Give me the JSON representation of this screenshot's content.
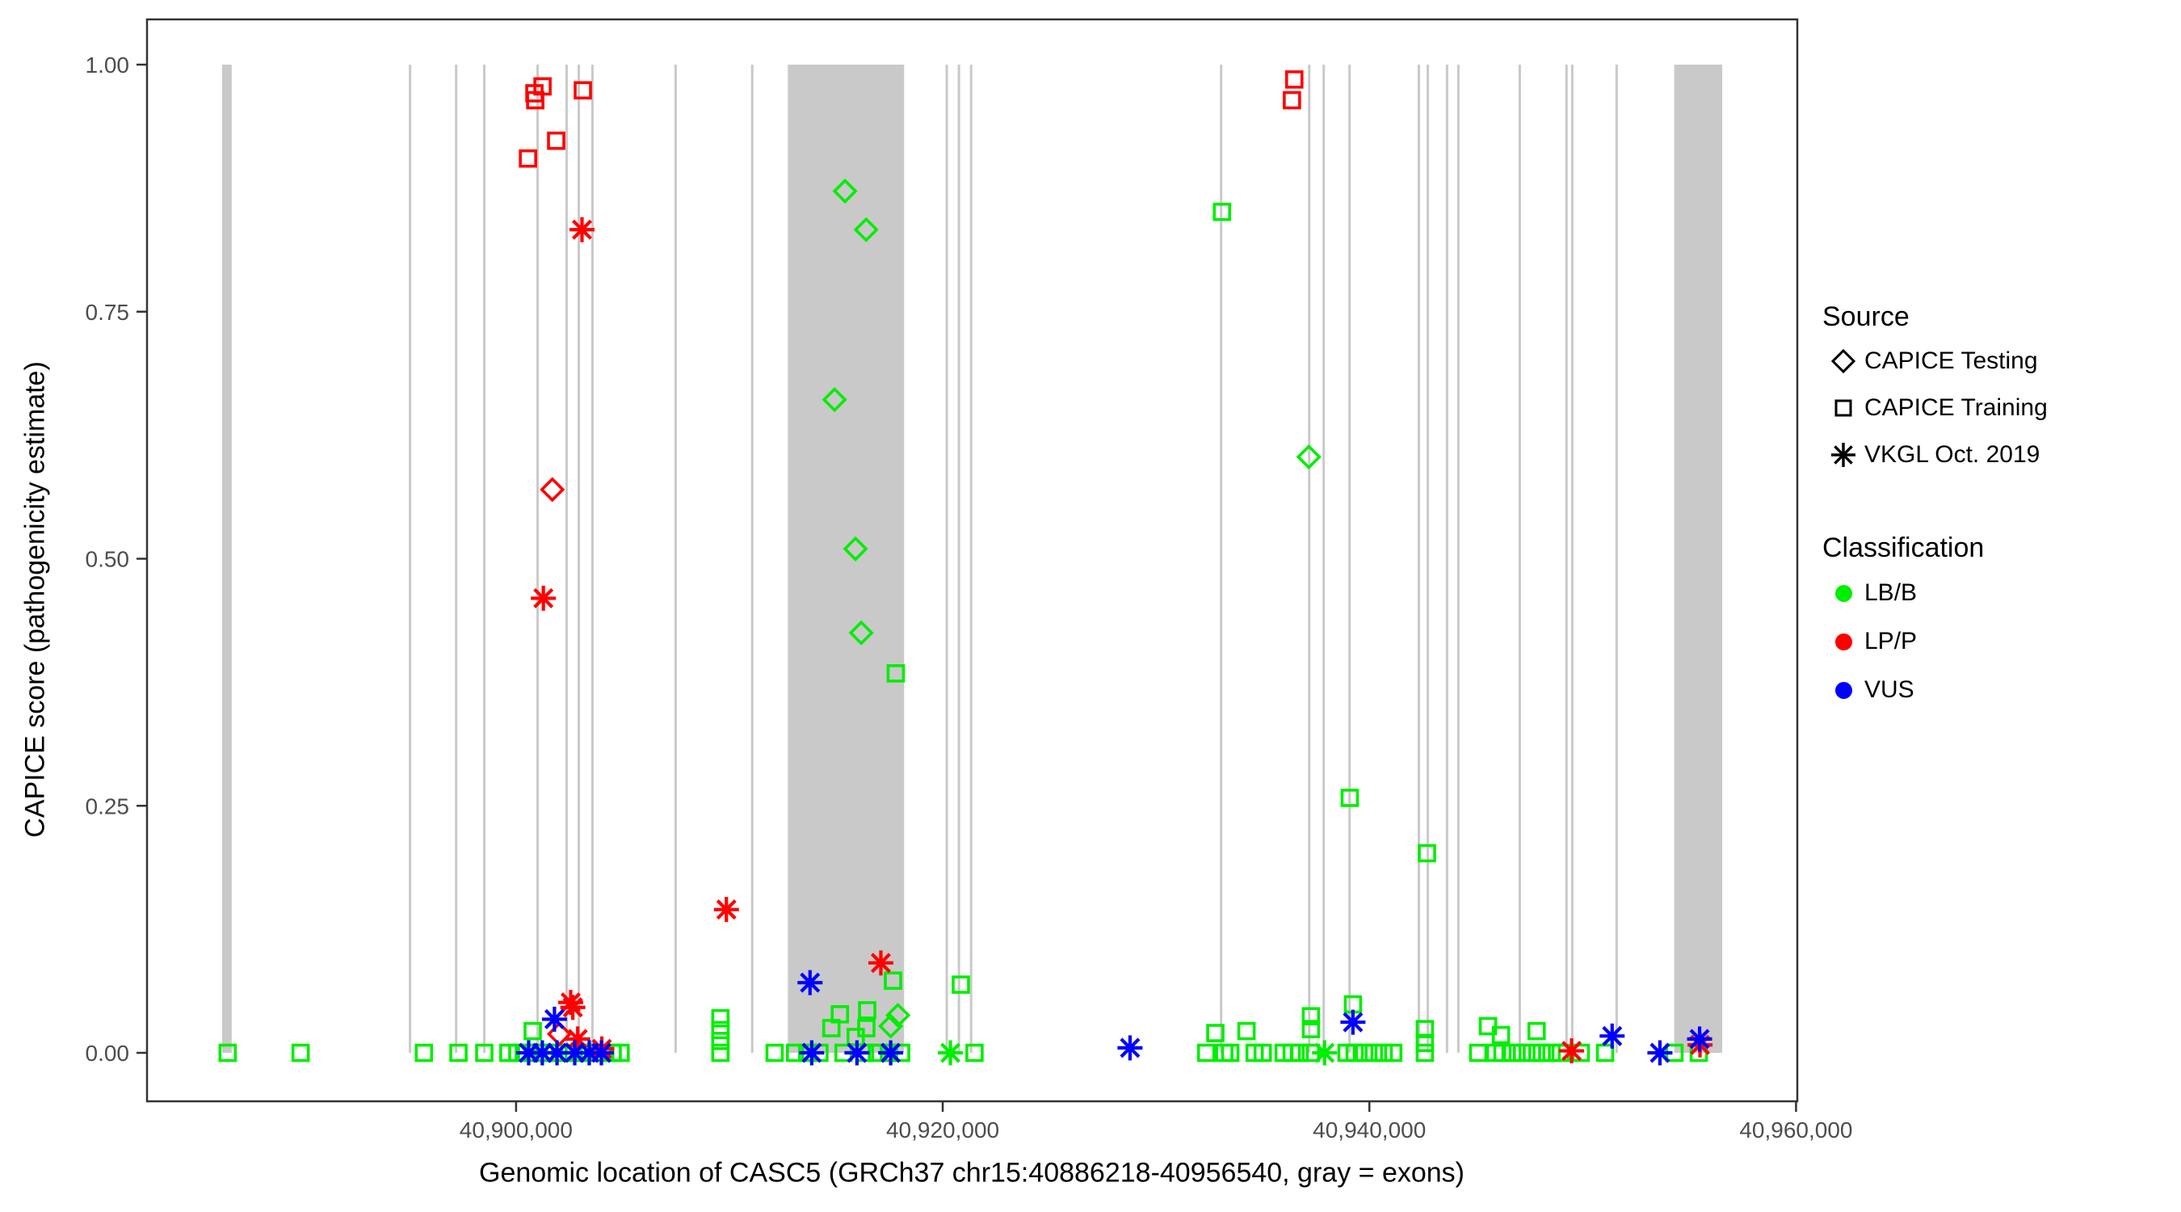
{
  "chart_data": {
    "type": "scatter",
    "title": "",
    "xlabel": "Genomic location of CASC5 (GRCh37 chr15:40886218-40956540, gray = exons)",
    "ylabel": "CAPICE score (pathogenicity estimate)",
    "xlim": [
      40882700,
      40960060
    ],
    "ylim": [
      0,
      1.0
    ],
    "grid": "off",
    "x_ticks": [
      {
        "value": 40900000,
        "label": "40,900,000"
      },
      {
        "value": 40920000,
        "label": "40,920,000"
      },
      {
        "value": 40940000,
        "label": "40,940,000"
      },
      {
        "value": 40960000,
        "label": "40,960,000"
      }
    ],
    "y_ticks": [
      {
        "value": 0.0,
        "label": "0.00"
      },
      {
        "value": 0.25,
        "label": "0.25"
      },
      {
        "value": 0.5,
        "label": "0.50"
      },
      {
        "value": 0.75,
        "label": "0.75"
      },
      {
        "value": 1.0,
        "label": "1.00"
      }
    ],
    "exon_regions": [
      [
        40886218,
        40886670
      ],
      [
        40912740,
        40918190
      ],
      [
        40954290,
        40956540
      ]
    ],
    "exon_lines": [
      40895030,
      40897190,
      40898510,
      40901010,
      40902370,
      40902940,
      40903580,
      40907480,
      40911070,
      40920190,
      40920760,
      40921330,
      40933050,
      40937180,
      40937860,
      40939070,
      40942320,
      40942740,
      40943640,
      40944170,
      40947050,
      40949240,
      40949510,
      40951590
    ],
    "series": [
      {
        "name": "LB/B CAPICE Training",
        "classification": "LB/B",
        "source": "CAPICE Training",
        "marker": "square",
        "color": "#00EE00",
        "points": [
          [
            40886480,
            0
          ],
          [
            40889900,
            0
          ],
          [
            40895680,
            0
          ],
          [
            40897300,
            0
          ],
          [
            40898510,
            0
          ],
          [
            40899640,
            0
          ],
          [
            40900060,
            0
          ],
          [
            40900480,
            0
          ],
          [
            40900780,
            0.022
          ],
          [
            40900890,
            0
          ],
          [
            40901340,
            0
          ],
          [
            40901790,
            0
          ],
          [
            40902250,
            0
          ],
          [
            40902700,
            0
          ],
          [
            40903160,
            0
          ],
          [
            40903610,
            0
          ],
          [
            40904070,
            0
          ],
          [
            40904530,
            0
          ],
          [
            40904900,
            0
          ],
          [
            40909580,
            0.035
          ],
          [
            40909580,
            0.023
          ],
          [
            40909580,
            0.012
          ],
          [
            40909580,
            0
          ],
          [
            40912120,
            0
          ],
          [
            40913080,
            0
          ],
          [
            40913650,
            0
          ],
          [
            40914220,
            0
          ],
          [
            40914780,
            0.025
          ],
          [
            40915180,
            0.039
          ],
          [
            40915350,
            0
          ],
          [
            40915920,
            0.016
          ],
          [
            40916350,
            0
          ],
          [
            40916420,
            0.025
          ],
          [
            40916460,
            0.043
          ],
          [
            40916920,
            0
          ],
          [
            40917480,
            0
          ],
          [
            40917670,
            0.073
          ],
          [
            40918050,
            0
          ],
          [
            40917800,
            0.384
          ],
          [
            40920850,
            0.069
          ],
          [
            40921490,
            0
          ],
          [
            40932350,
            0
          ],
          [
            40932780,
            0.02
          ],
          [
            40933200,
            0
          ],
          [
            40933480,
            0
          ],
          [
            40933090,
            0.851
          ],
          [
            40934240,
            0.022
          ],
          [
            40934620,
            0
          ],
          [
            40935000,
            0
          ],
          [
            40935980,
            0
          ],
          [
            40936360,
            0
          ],
          [
            40936730,
            0
          ],
          [
            40937260,
            0.037
          ],
          [
            40937260,
            0.024
          ],
          [
            40937260,
            0
          ],
          [
            40938930,
            0
          ],
          [
            40939080,
            0.258
          ],
          [
            40939230,
            0.049
          ],
          [
            40939310,
            0
          ],
          [
            40939760,
            0
          ],
          [
            40940210,
            0
          ],
          [
            40940670,
            0
          ],
          [
            40941120,
            0
          ],
          [
            40942600,
            0.024
          ],
          [
            40942600,
            0.01
          ],
          [
            40942600,
            0
          ],
          [
            40942700,
            0.202
          ],
          [
            40945100,
            0
          ],
          [
            40945560,
            0.027
          ],
          [
            40945900,
            0
          ],
          [
            40946170,
            0.018
          ],
          [
            40946240,
            0
          ],
          [
            40946700,
            0
          ],
          [
            40947160,
            0
          ],
          [
            40947620,
            0
          ],
          [
            40947840,
            0.022
          ],
          [
            40948080,
            0
          ],
          [
            40948540,
            0
          ],
          [
            40948970,
            0
          ],
          [
            40949910,
            0
          ],
          [
            40951050,
            0
          ],
          [
            40954300,
            0
          ],
          [
            40955440,
            0
          ]
        ]
      },
      {
        "name": "LB/B CAPICE Testing",
        "classification": "LB/B",
        "source": "CAPICE Testing",
        "marker": "diamond",
        "color": "#00EE00",
        "points": [
          [
            40915420,
            0.872
          ],
          [
            40916410,
            0.833
          ],
          [
            40914930,
            0.661
          ],
          [
            40915910,
            0.51
          ],
          [
            40916180,
            0.425
          ],
          [
            40937160,
            0.603
          ],
          [
            40917900,
            0.038
          ],
          [
            40917560,
            0.027
          ]
        ]
      },
      {
        "name": "LB/B VKGL Oct. 2019",
        "classification": "LB/B",
        "source": "VKGL Oct. 2019",
        "marker": "asterisk",
        "color": "#00EE00",
        "points": [
          [
            40920360,
            0
          ],
          [
            40937900,
            0
          ]
        ]
      },
      {
        "name": "LP/P CAPICE Training",
        "classification": "LP/P",
        "source": "CAPICE Training",
        "marker": "square",
        "color": "#FF0000",
        "points": [
          [
            40901240,
            0.978
          ],
          [
            40900860,
            0.971
          ],
          [
            40900900,
            0.964
          ],
          [
            40903130,
            0.974
          ],
          [
            40901880,
            0.923
          ],
          [
            40900560,
            0.905
          ],
          [
            40936480,
            0.985
          ],
          [
            40936370,
            0.964
          ]
        ]
      },
      {
        "name": "LP/P CAPICE Testing",
        "classification": "LP/P",
        "source": "CAPICE Testing",
        "marker": "diamond",
        "color": "#FF0000",
        "points": [
          [
            40901700,
            0.57
          ],
          [
            40902030,
            0.019
          ]
        ]
      },
      {
        "name": "LP/P VKGL Oct. 2019",
        "classification": "LP/P",
        "source": "VKGL Oct. 2019",
        "marker": "asterisk",
        "color": "#FF0000",
        "points": [
          [
            40903090,
            0.833
          ],
          [
            40901280,
            0.46
          ],
          [
            40909860,
            0.145
          ],
          [
            40917100,
            0.091
          ],
          [
            40902560,
            0.051
          ],
          [
            40902660,
            0.046
          ],
          [
            40902890,
            0.014
          ],
          [
            40904020,
            0.004
          ],
          [
            40949480,
            0.002
          ],
          [
            40955500,
            0.008
          ]
        ]
      },
      {
        "name": "VUS VKGL Oct. 2019",
        "classification": "VUS",
        "source": "VKGL Oct. 2019",
        "marker": "asterisk",
        "color": "#0000FF",
        "points": [
          [
            40900590,
            0
          ],
          [
            40901230,
            0
          ],
          [
            40901800,
            0.034
          ],
          [
            40901920,
            0
          ],
          [
            40902750,
            0
          ],
          [
            40903430,
            0
          ],
          [
            40904000,
            0
          ],
          [
            40913780,
            0.071
          ],
          [
            40913860,
            0
          ],
          [
            40915980,
            0
          ],
          [
            40917560,
            0
          ],
          [
            40928780,
            0.005
          ],
          [
            40939230,
            0.031
          ],
          [
            40951380,
            0.017
          ],
          [
            40953620,
            0
          ],
          [
            40955480,
            0.014
          ]
        ]
      }
    ],
    "legend": {
      "position": "right",
      "source_title": "Source",
      "source_items": [
        {
          "label": "CAPICE Testing",
          "marker": "diamond"
        },
        {
          "label": "CAPICE Training",
          "marker": "square"
        },
        {
          "label": "VKGL Oct. 2019",
          "marker": "asterisk"
        }
      ],
      "classification_title": "Classification",
      "classification_items": [
        {
          "label": "LB/B",
          "color": "#00EE00"
        },
        {
          "label": "LP/P",
          "color": "#FF0000"
        },
        {
          "label": "VUS",
          "color": "#0000FF"
        }
      ]
    },
    "colors": {
      "exon_fill": "#C9C9C9",
      "axis": "#333333",
      "tick_label": "#4D4D4D"
    }
  }
}
